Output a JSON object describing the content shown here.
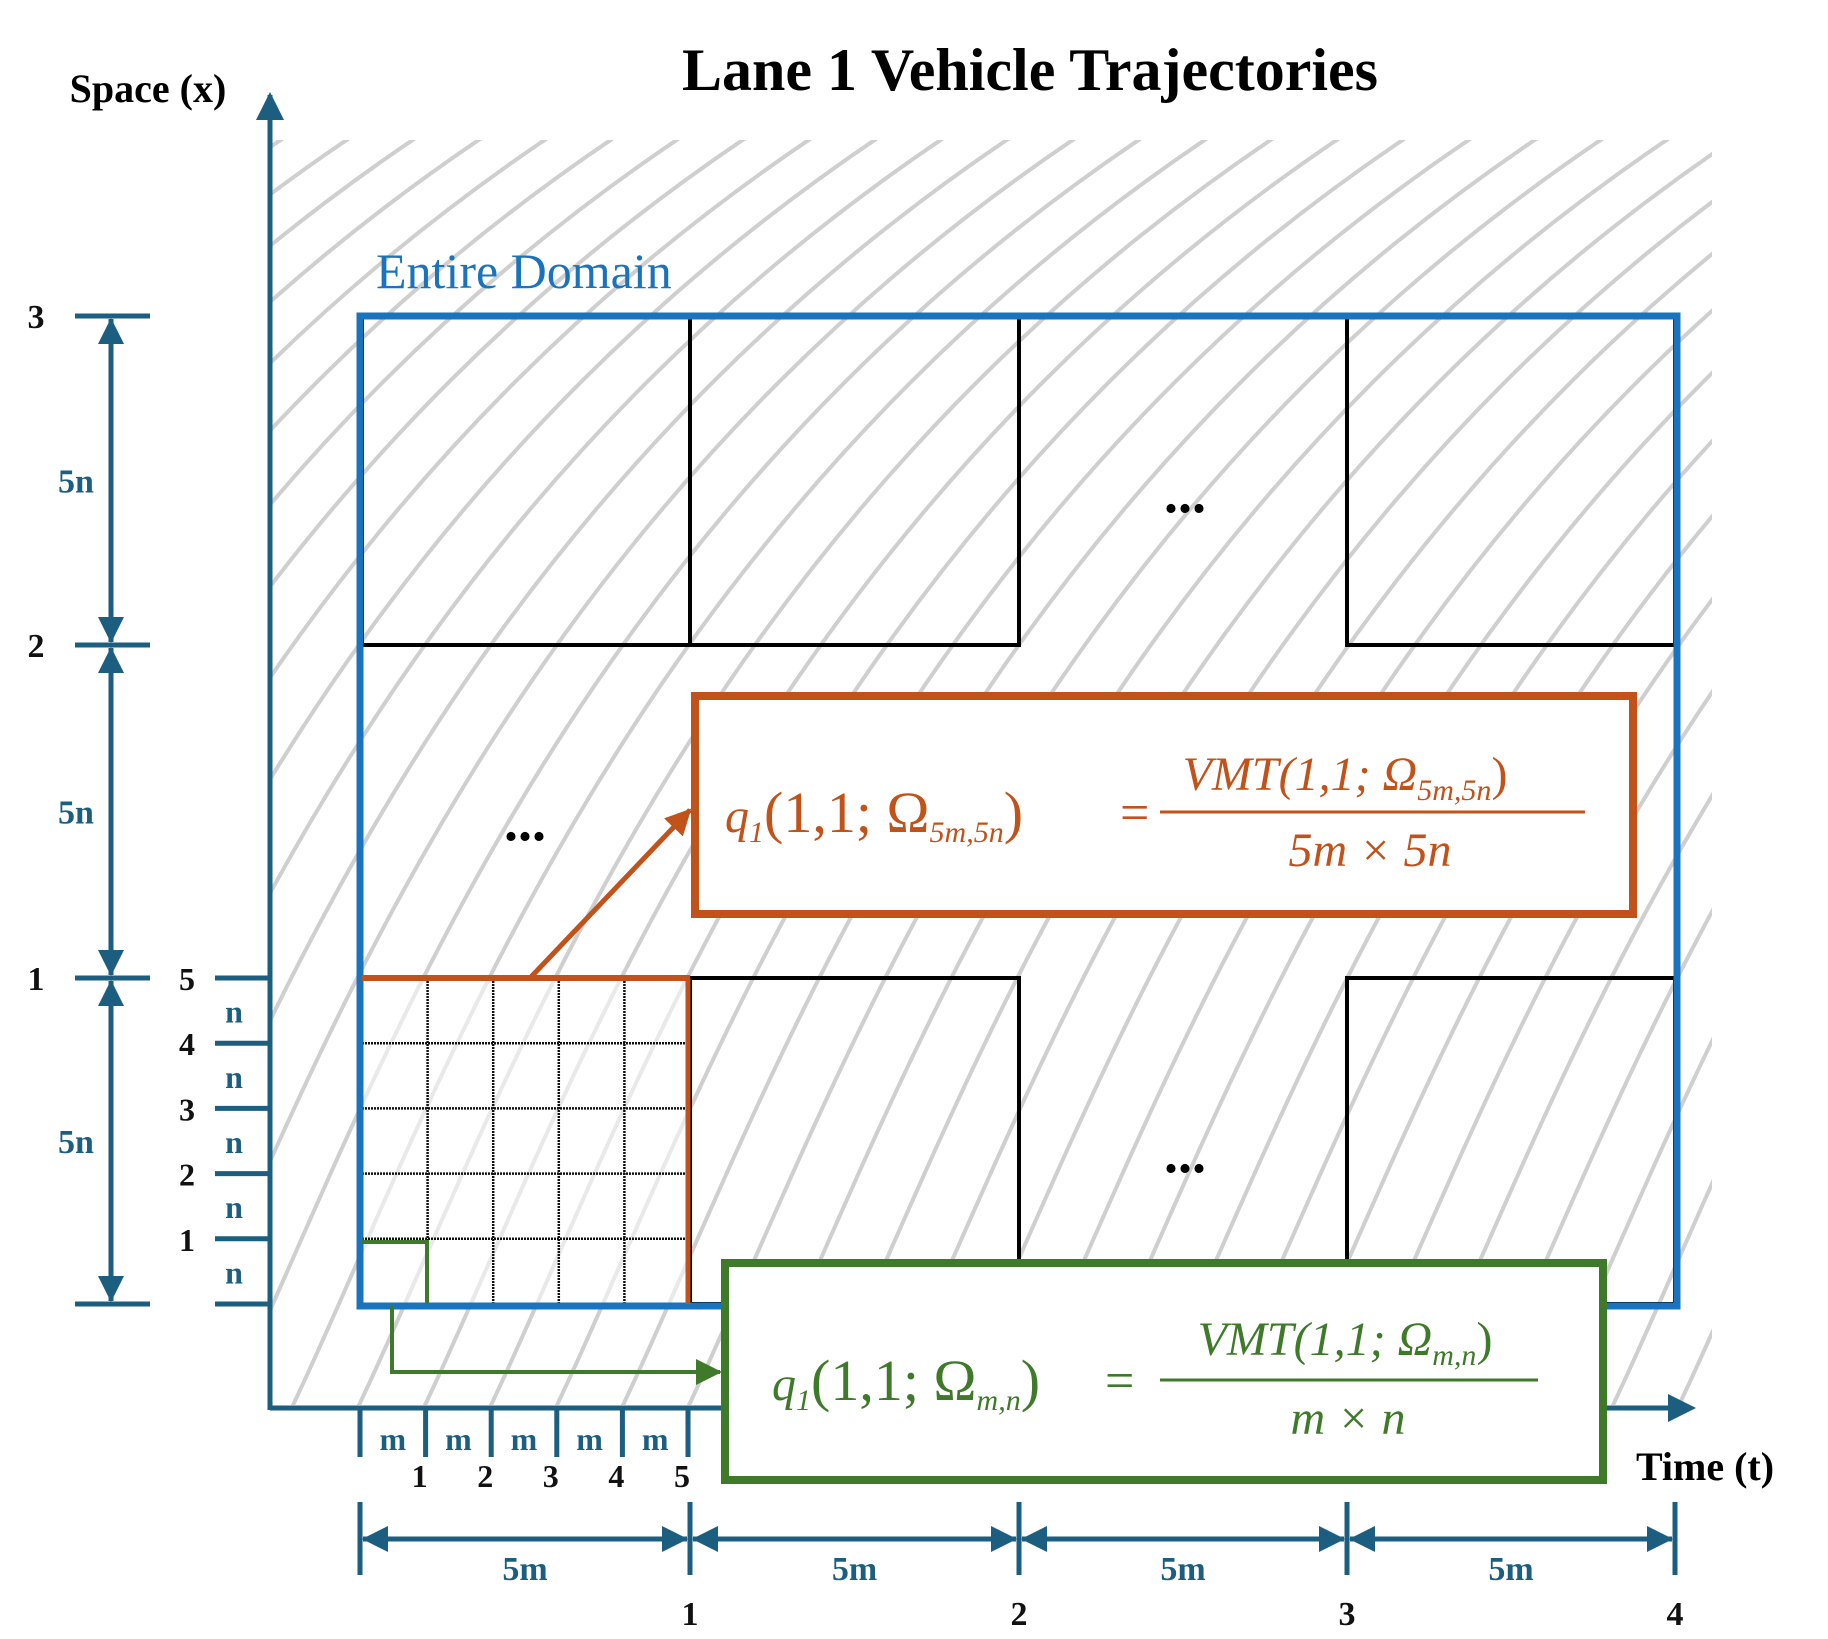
{
  "title": "Lane 1 Vehicle Trajectories",
  "y_axis_label": "Space (x)",
  "x_axis_label": "Time (t)",
  "domain_label": "Entire Domain",
  "ellipsis": "...",
  "outer_y_ticks": [
    "1",
    "2",
    "3"
  ],
  "inner_y_ticks": [
    "1",
    "2",
    "3",
    "4",
    "5"
  ],
  "outer_x_ticks": [
    "1",
    "2",
    "3",
    "4"
  ],
  "inner_x_ticks": [
    "1",
    "2",
    "3",
    "4",
    "5"
  ],
  "big_span_y": "5n",
  "big_span_x": "5m",
  "small_span_y": "n",
  "small_span_x": "m",
  "formula_large": {
    "lhs_q": "q",
    "lhs_sub": "1",
    "lhs_args": "(1,1; Ω",
    "lhs_args_sub": "5m,5n",
    "lhs_close": ")",
    "equals": "=",
    "num": "VMT(1,1; Ω",
    "num_sub": "5m,5n",
    "num_close": ")",
    "den": "5m × 5n"
  },
  "formula_small": {
    "lhs_q": "q",
    "lhs_sub": "1",
    "lhs_args": "(1,1; Ω",
    "lhs_args_sub": "m,n",
    "lhs_close": ")",
    "equals": "=",
    "num": "VMT(1,1; Ω",
    "num_sub": "m,n",
    "num_close": ")",
    "den": "m × n"
  },
  "colors": {
    "axis": "#1b5e7f",
    "domain_border": "#1a73bd",
    "orange": "#c0521a",
    "green": "#3f7a2a",
    "hatch": "#cfcfcf",
    "grid": "#111111"
  }
}
